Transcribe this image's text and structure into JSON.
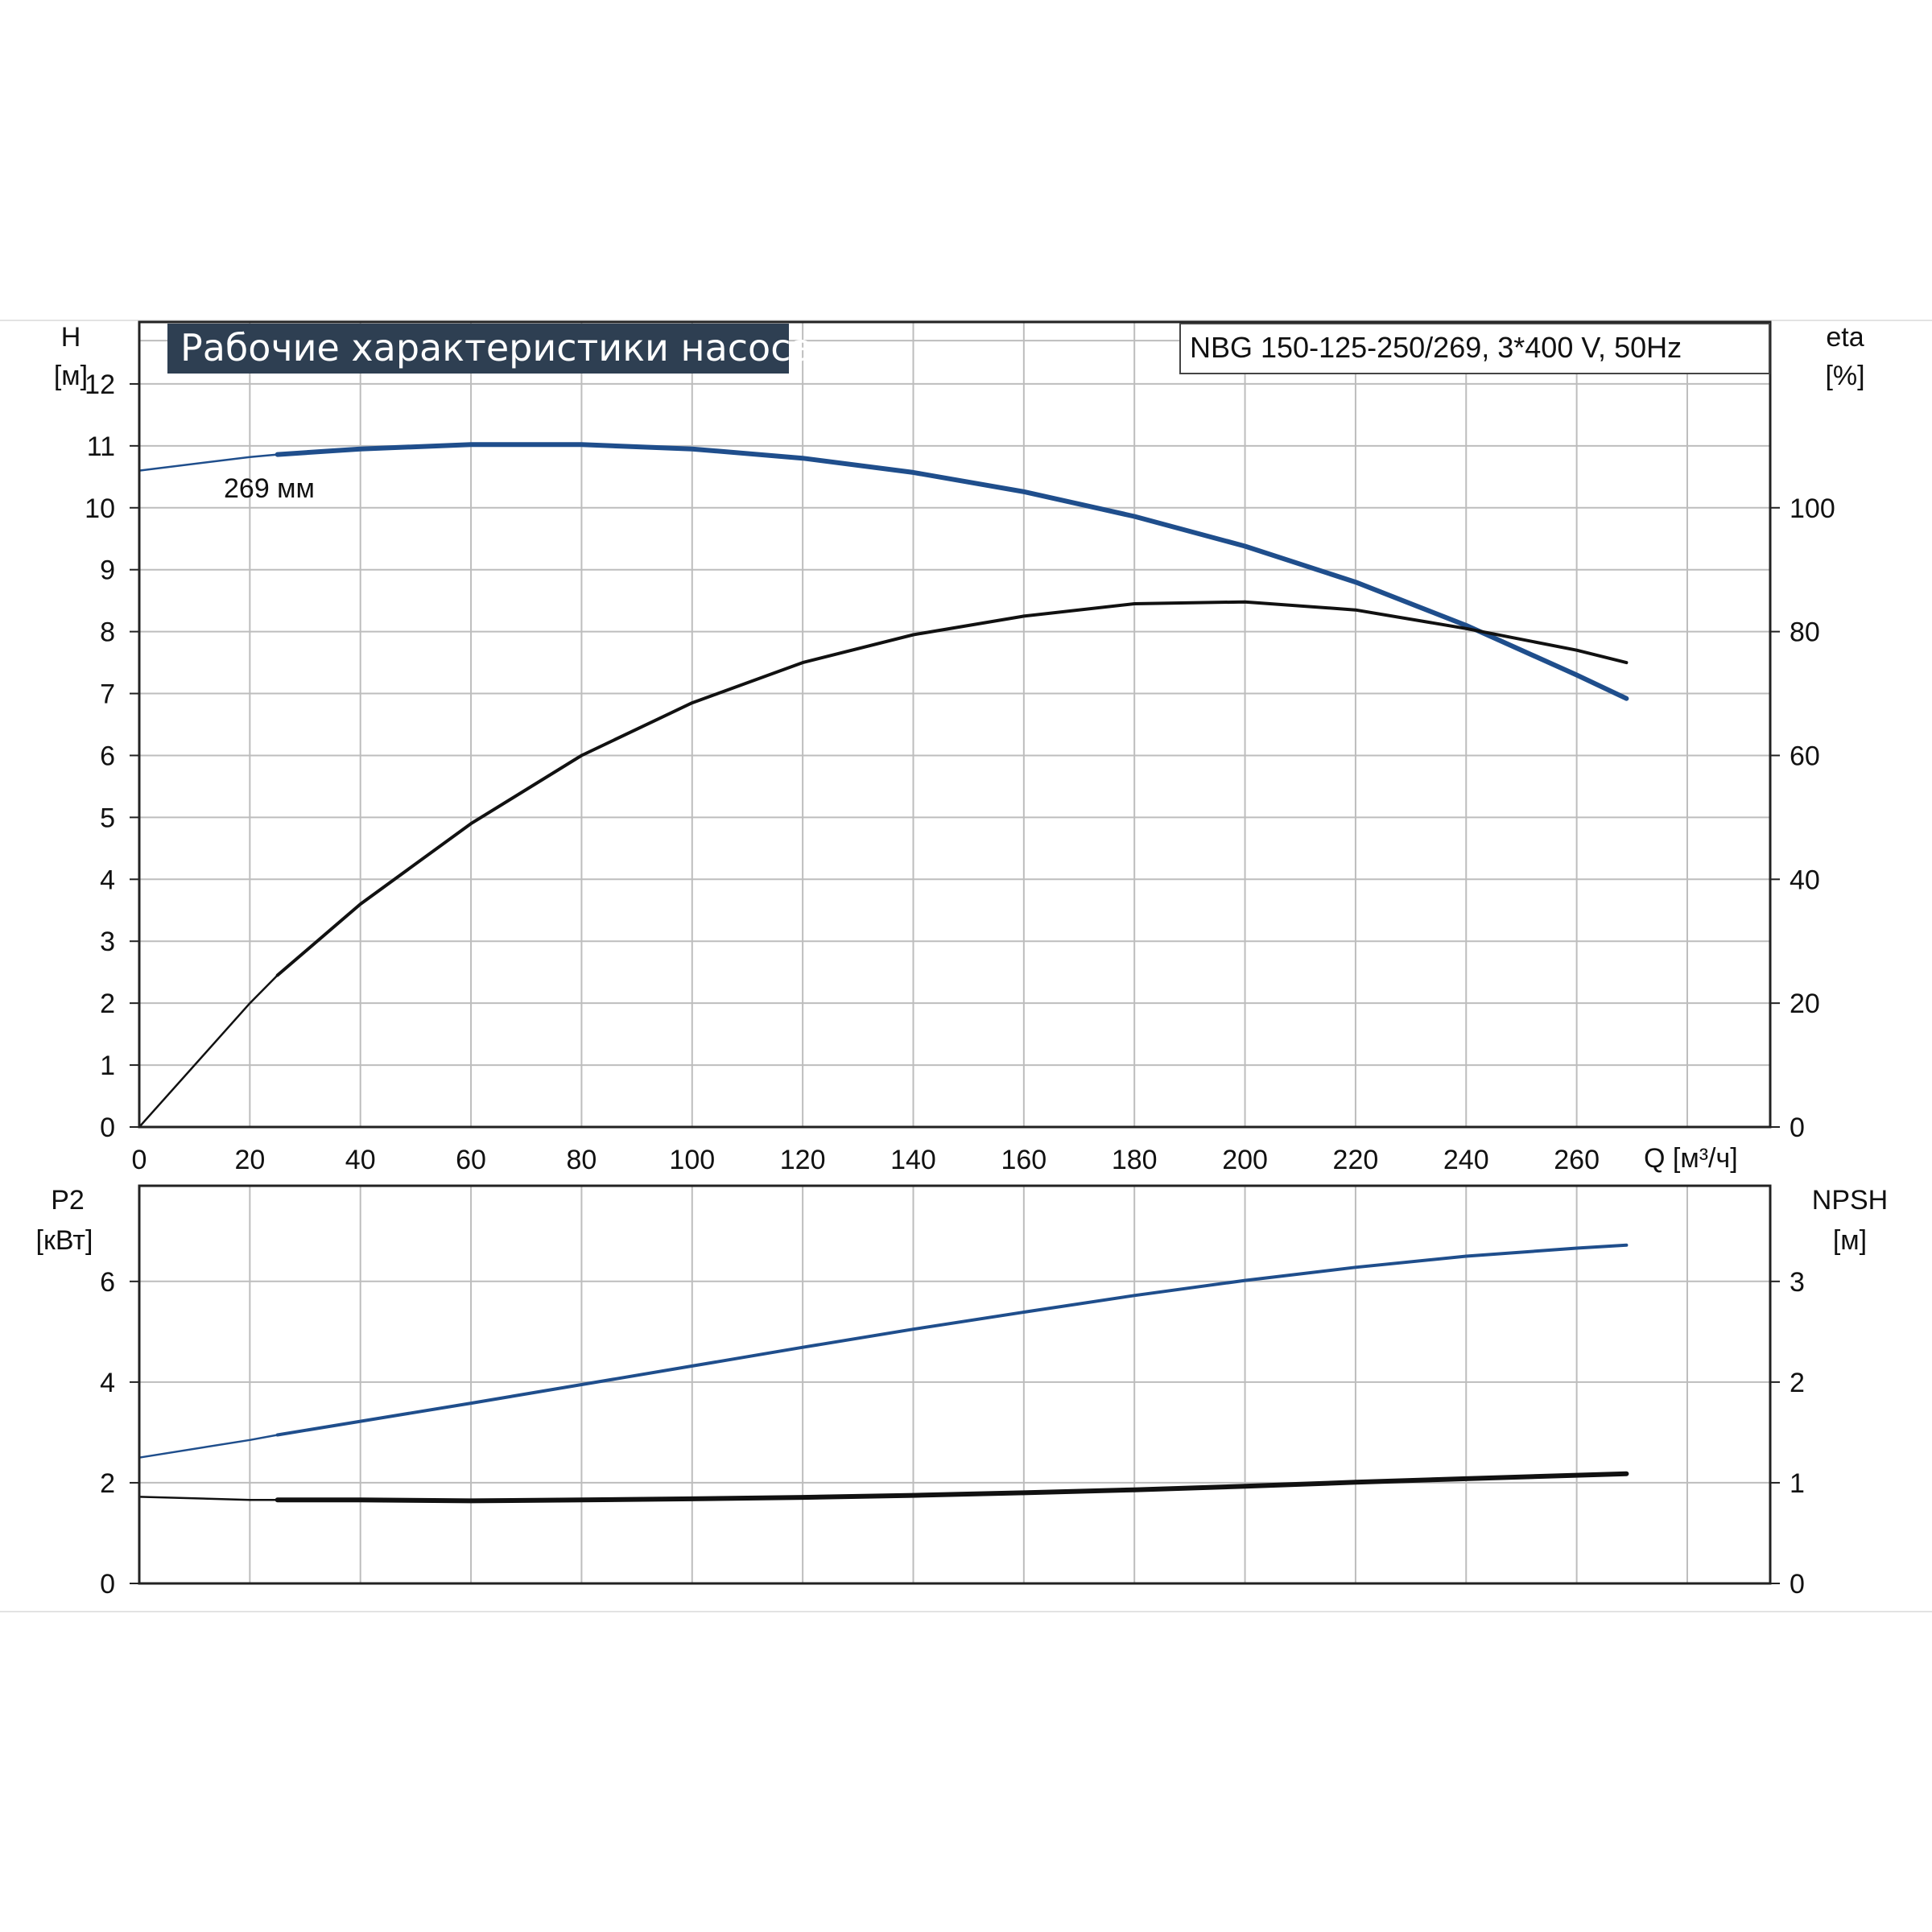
{
  "header": {
    "title": "Рабочие характеристики насоса",
    "model": "NBG 150-125-250/269, 3*400 V, 50Hz"
  },
  "colors": {
    "title_bg": "#2e3f52",
    "curve_blue": "#1f4e8c",
    "curve_black": "#111111",
    "grid": "#bdbdbd"
  },
  "chart_data": [
    {
      "type": "line",
      "panel": "upper",
      "xlabel": "Q [м³/ч]",
      "x_ticks": [
        0,
        20,
        40,
        60,
        80,
        100,
        120,
        140,
        160,
        180,
        200,
        220,
        240,
        260
      ],
      "xlim": [
        0,
        295
      ],
      "left_axis": {
        "label": "H",
        "unit": "[м]",
        "ylim": [
          0,
          13
        ],
        "ticks": [
          0,
          1,
          2,
          3,
          4,
          5,
          6,
          7,
          8,
          9,
          10,
          11,
          12
        ]
      },
      "right_axis": {
        "label": "eta",
        "unit": "[%]",
        "ylim": [
          0,
          130
        ],
        "ticks": [
          0,
          20,
          40,
          60,
          80,
          100
        ]
      },
      "annotation": "269 мм",
      "series": [
        {
          "axis": "left",
          "color": "#1f4e8c",
          "x": [
            0,
            20,
            25,
            40,
            60,
            80,
            100,
            120,
            140,
            160,
            180,
            200,
            220,
            240,
            260,
            269
          ],
          "y": [
            10.6,
            10.82,
            10.86,
            10.95,
            11.02,
            11.02,
            10.95,
            10.8,
            10.57,
            10.26,
            9.86,
            9.38,
            8.8,
            8.1,
            7.3,
            6.92
          ]
        },
        {
          "axis": "right",
          "color": "#111111",
          "x": [
            0,
            20,
            25,
            40,
            60,
            80,
            100,
            120,
            140,
            160,
            180,
            200,
            220,
            240,
            260,
            269
          ],
          "y": [
            0,
            20,
            24.5,
            36,
            49,
            60,
            68.5,
            75,
            79.5,
            82.5,
            84.5,
            84.8,
            83.5,
            80.5,
            77,
            75
          ]
        }
      ]
    },
    {
      "type": "line",
      "panel": "lower",
      "xlim": [
        0,
        295
      ],
      "left_axis": {
        "label": "P2",
        "unit": "[кВт]",
        "ylim": [
          0,
          7.9
        ],
        "ticks": [
          0,
          2,
          4,
          6
        ]
      },
      "right_axis": {
        "label": "NPSH",
        "unit": "[м]",
        "ylim": [
          0,
          3.95
        ],
        "ticks": [
          0,
          1,
          2,
          3
        ]
      },
      "series": [
        {
          "axis": "left",
          "color": "#1f4e8c",
          "x": [
            0,
            20,
            25,
            40,
            60,
            80,
            100,
            120,
            140,
            160,
            180,
            200,
            220,
            240,
            260,
            269
          ],
          "y": [
            2.5,
            2.85,
            2.95,
            3.22,
            3.58,
            3.95,
            4.32,
            4.69,
            5.05,
            5.39,
            5.72,
            6.02,
            6.28,
            6.5,
            6.66,
            6.72
          ]
        },
        {
          "axis": "right",
          "color": "#111111",
          "x": [
            0,
            20,
            25,
            40,
            60,
            80,
            100,
            120,
            140,
            160,
            180,
            200,
            220,
            240,
            260,
            269
          ],
          "y": [
            0.86,
            0.83,
            0.83,
            0.83,
            0.82,
            0.83,
            0.84,
            0.855,
            0.875,
            0.9,
            0.93,
            0.965,
            1.005,
            1.04,
            1.075,
            1.09
          ]
        }
      ]
    }
  ]
}
